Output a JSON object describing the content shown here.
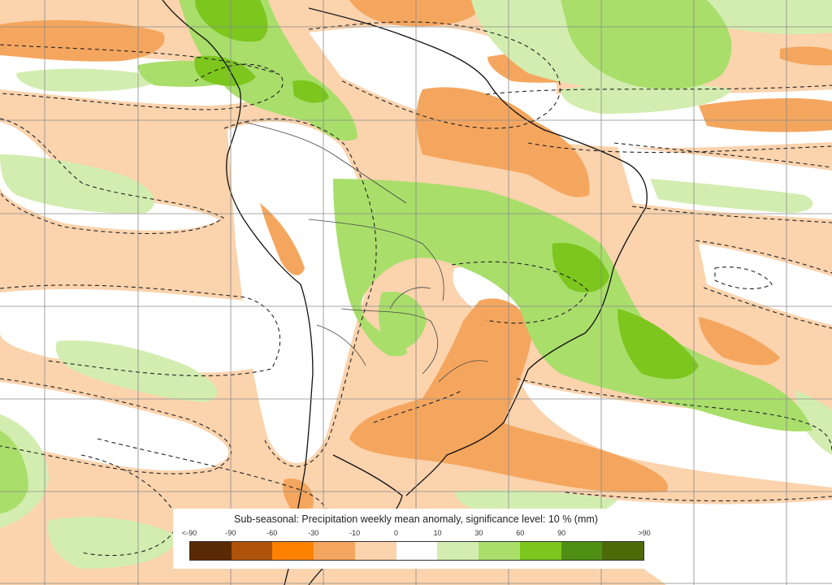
{
  "map": {
    "title": "Sub-seasonal: Precipitation weekly mean anomaly, significance level: 10 % (mm)",
    "legend": {
      "ticks": [
        "<-90",
        "-90",
        "-60",
        "-30",
        "-10",
        "0",
        "10",
        "30",
        "60",
        "90",
        ">90"
      ],
      "colors": [
        "#5a2a05",
        "#b0530a",
        "#ff8200",
        "#f5a65e",
        "#fbd3ad",
        "#ffffff",
        "#d3edb0",
        "#a9de6b",
        "#7cc61e",
        "#4f8f14",
        "#4c6a08"
      ]
    },
    "palette": {
      "ocean_dry_light": "#fbd3ad",
      "dry_medium": "#f5a65e",
      "wet_light": "#d3edb0",
      "wet_medium": "#a9de6b",
      "wet_strong": "#7cc61e",
      "neutral": "#ffffff",
      "grid": "#8a8a8a",
      "coast": "#111111"
    }
  }
}
